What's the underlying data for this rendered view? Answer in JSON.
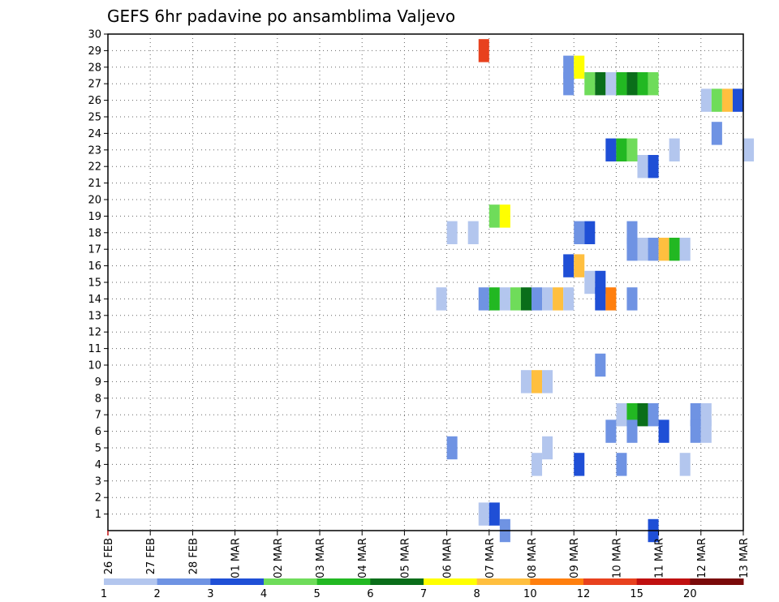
{
  "chart_data": {
    "type": "heatmap",
    "title": "GEFS 6hr padavine po ansamblima Valjevo",
    "xlabel": "",
    "ylabel": "",
    "x_tick_labels": [
      "26 FEB",
      "27 FEB",
      "28 FEB",
      "01 MAR",
      "02 MAR",
      "03 MAR",
      "04 MAR",
      "05 MAR",
      "06 MAR",
      "07 MAR",
      "08 MAR",
      "09 MAR",
      "10 MAR",
      "11 MAR",
      "12 MAR",
      "13 MAR"
    ],
    "xlim_days": [
      0,
      15
    ],
    "steps_per_day": 4,
    "ylim": [
      0,
      30
    ],
    "y_ticks": [
      1,
      2,
      3,
      4,
      5,
      6,
      7,
      8,
      9,
      10,
      11,
      12,
      13,
      14,
      15,
      16,
      17,
      18,
      19,
      20,
      21,
      22,
      23,
      24,
      25,
      26,
      27,
      28,
      29,
      30
    ],
    "grid": true,
    "colorbar": {
      "tick_labels": [
        "1",
        "2",
        "3",
        "4",
        "5",
        "6",
        "7",
        "8",
        "10",
        "12",
        "15",
        "20"
      ],
      "colors": [
        "#b3c6ee",
        "#6f93e3",
        "#1f4fd6",
        "#6fdc5a",
        "#22b822",
        "#0a6e1a",
        "#ffff00",
        "#ffbf3f",
        "#ff7f0e",
        "#e8411e",
        "#c01010",
        "#7a0a0a"
      ]
    },
    "cells": [
      {
        "step": 35,
        "member": 29,
        "level": 10
      },
      {
        "step": 43,
        "member": 28,
        "level": 2
      },
      {
        "step": 44,
        "member": 28,
        "level": 7
      },
      {
        "step": 43,
        "member": 27,
        "level": 2
      },
      {
        "step": 45,
        "member": 27,
        "level": 4
      },
      {
        "step": 46,
        "member": 27,
        "level": 6
      },
      {
        "step": 47,
        "member": 27,
        "level": 1
      },
      {
        "step": 48,
        "member": 27,
        "level": 5
      },
      {
        "step": 49,
        "member": 27,
        "level": 6
      },
      {
        "step": 50,
        "member": 27,
        "level": 5
      },
      {
        "step": 51,
        "member": 27,
        "level": 4
      },
      {
        "step": 56,
        "member": 26,
        "level": 1
      },
      {
        "step": 57,
        "member": 26,
        "level": 4
      },
      {
        "step": 58,
        "member": 26,
        "level": 8
      },
      {
        "step": 59,
        "member": 26,
        "level": 3
      },
      {
        "step": 57,
        "member": 24,
        "level": 2
      },
      {
        "step": 47,
        "member": 23,
        "level": 3
      },
      {
        "step": 48,
        "member": 23,
        "level": 5
      },
      {
        "step": 49,
        "member": 23,
        "level": 4
      },
      {
        "step": 53,
        "member": 23,
        "level": 1
      },
      {
        "step": 60,
        "member": 23,
        "level": 1
      },
      {
        "step": 50,
        "member": 22,
        "level": 1
      },
      {
        "step": 51,
        "member": 22,
        "level": 3
      },
      {
        "step": 36,
        "member": 19,
        "level": 4
      },
      {
        "step": 37,
        "member": 19,
        "level": 7
      },
      {
        "step": 32,
        "member": 18,
        "level": 1
      },
      {
        "step": 34,
        "member": 18,
        "level": 1
      },
      {
        "step": 44,
        "member": 18,
        "level": 2
      },
      {
        "step": 45,
        "member": 18,
        "level": 3
      },
      {
        "step": 49,
        "member": 18,
        "level": 2
      },
      {
        "step": 49,
        "member": 17,
        "level": 2
      },
      {
        "step": 50,
        "member": 17,
        "level": 1
      },
      {
        "step": 51,
        "member": 17,
        "level": 2
      },
      {
        "step": 52,
        "member": 17,
        "level": 8
      },
      {
        "step": 53,
        "member": 17,
        "level": 5
      },
      {
        "step": 54,
        "member": 17,
        "level": 1
      },
      {
        "step": 43,
        "member": 16,
        "level": 3
      },
      {
        "step": 44,
        "member": 16,
        "level": 8
      },
      {
        "step": 45,
        "member": 15,
        "level": 1
      },
      {
        "step": 46,
        "member": 15,
        "level": 3
      },
      {
        "step": 31,
        "member": 14,
        "level": 1
      },
      {
        "step": 35,
        "member": 14,
        "level": 2
      },
      {
        "step": 36,
        "member": 14,
        "level": 5
      },
      {
        "step": 37,
        "member": 14,
        "level": 1
      },
      {
        "step": 38,
        "member": 14,
        "level": 4
      },
      {
        "step": 39,
        "member": 14,
        "level": 6
      },
      {
        "step": 40,
        "member": 14,
        "level": 2
      },
      {
        "step": 41,
        "member": 14,
        "level": 1
      },
      {
        "step": 42,
        "member": 14,
        "level": 8
      },
      {
        "step": 43,
        "member": 14,
        "level": 1
      },
      {
        "step": 46,
        "member": 14,
        "level": 3
      },
      {
        "step": 47,
        "member": 14,
        "level": 9
      },
      {
        "step": 49,
        "member": 14,
        "level": 2
      },
      {
        "step": 46,
        "member": 10,
        "level": 2
      },
      {
        "step": 39,
        "member": 9,
        "level": 1
      },
      {
        "step": 40,
        "member": 9,
        "level": 8
      },
      {
        "step": 41,
        "member": 9,
        "level": 1
      },
      {
        "step": 48,
        "member": 7,
        "level": 1
      },
      {
        "step": 49,
        "member": 7,
        "level": 5
      },
      {
        "step": 50,
        "member": 7,
        "level": 6
      },
      {
        "step": 51,
        "member": 7,
        "level": 2
      },
      {
        "step": 55,
        "member": 7,
        "level": 2
      },
      {
        "step": 56,
        "member": 7,
        "level": 1
      },
      {
        "step": 47,
        "member": 6,
        "level": 2
      },
      {
        "step": 49,
        "member": 6,
        "level": 2
      },
      {
        "step": 52,
        "member": 6,
        "level": 3
      },
      {
        "step": 55,
        "member": 6,
        "level": 2
      },
      {
        "step": 56,
        "member": 6,
        "level": 1
      },
      {
        "step": 32,
        "member": 5,
        "level": 2
      },
      {
        "step": 41,
        "member": 5,
        "level": 1
      },
      {
        "step": 40,
        "member": 4,
        "level": 1
      },
      {
        "step": 44,
        "member": 4,
        "level": 3
      },
      {
        "step": 48,
        "member": 4,
        "level": 2
      },
      {
        "step": 54,
        "member": 4,
        "level": 1
      },
      {
        "step": 35,
        "member": 1,
        "level": 1
      },
      {
        "step": 36,
        "member": 1,
        "level": 3
      },
      {
        "step": 37,
        "member": 0,
        "level": 2
      },
      {
        "step": 51,
        "member": 0,
        "level": 3
      }
    ]
  }
}
